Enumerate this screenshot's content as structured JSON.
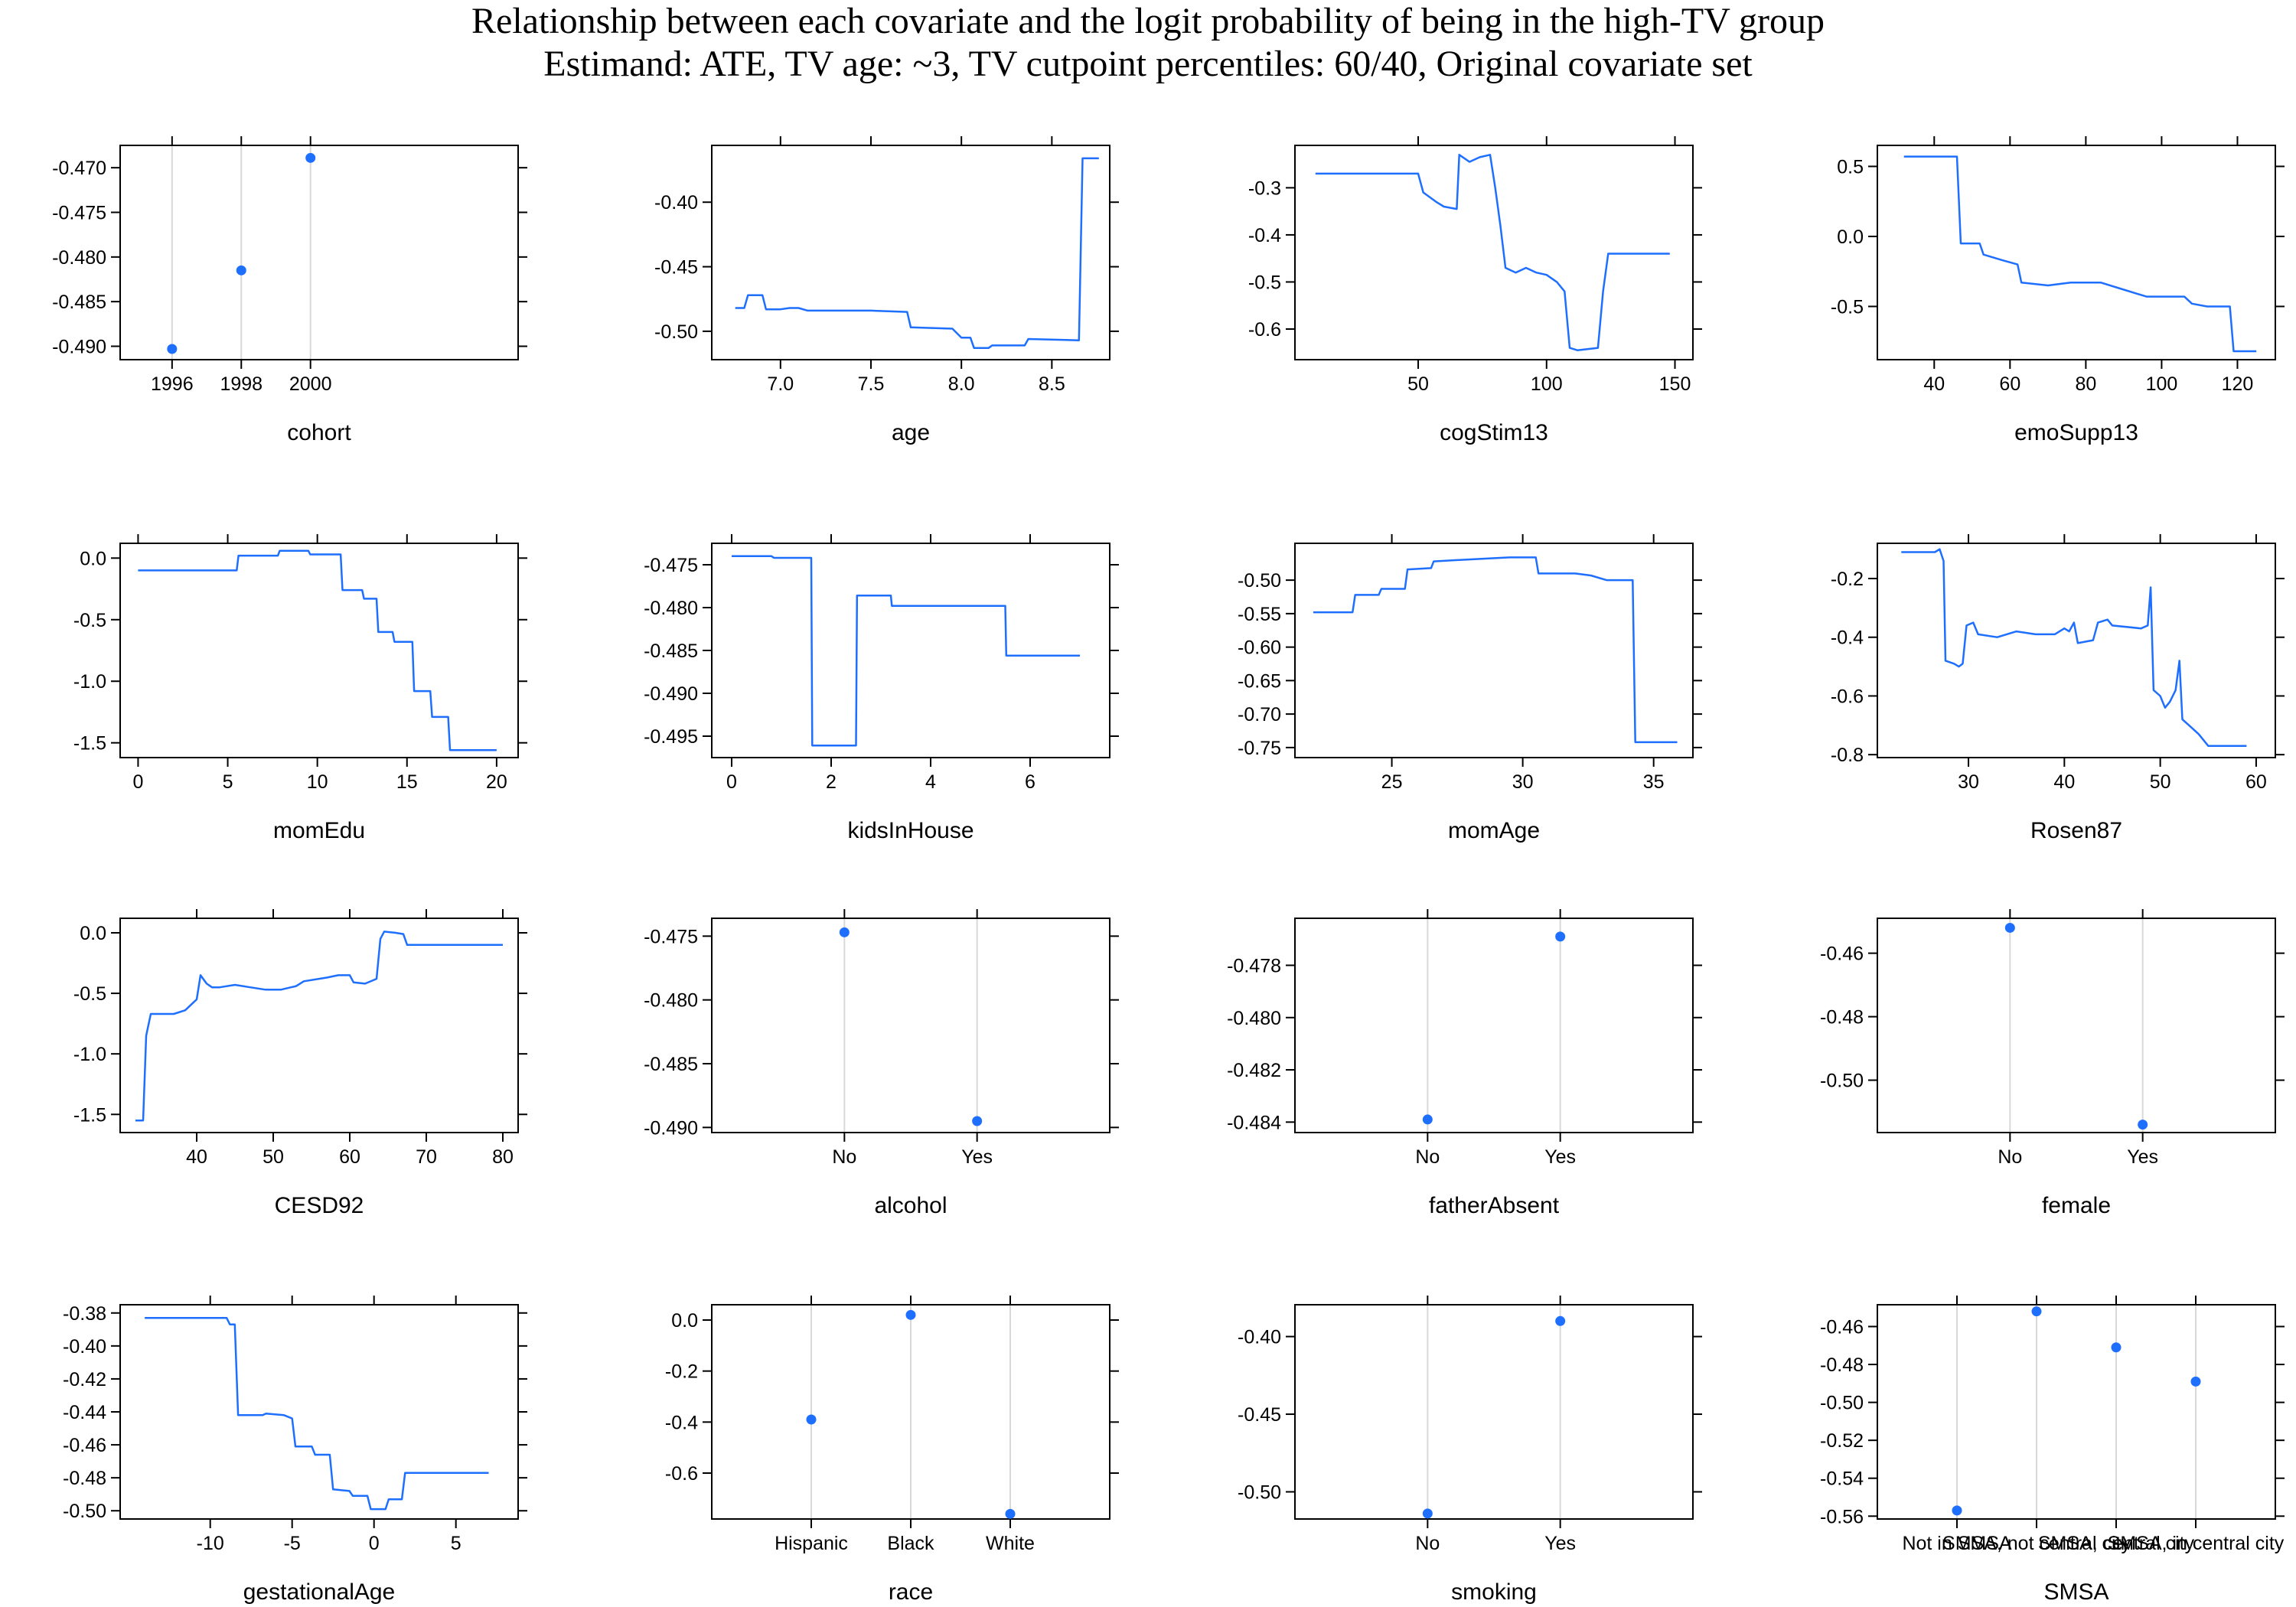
{
  "title": "Relationship between each covariate and the logit probability of being in the high-TV group",
  "subtitle": "Estimand: ATE, TV age: ~3, TV cutpoint percentiles: 60/40, Original covariate set",
  "colors": {
    "series": "#1f6fff",
    "axis": "#000000",
    "guide": "#d8d8d8"
  },
  "chart_data": [
    {
      "type": "scatter",
      "xlabel": "cohort",
      "categorical": false,
      "xlim": [
        1994.5,
        2006
      ],
      "xticks": [
        1996,
        1998,
        2000
      ],
      "xtick_labels": [
        "1996",
        "1998",
        "2000"
      ],
      "ylim": [
        -0.4915,
        -0.4675
      ],
      "yticks": [
        -0.49,
        -0.485,
        -0.48,
        -0.475,
        -0.47
      ],
      "ytick_labels": [
        "-0.490",
        "-0.485",
        "-0.480",
        "-0.475",
        "-0.470"
      ],
      "points": [
        [
          1996,
          -0.4903
        ],
        [
          1998,
          -0.4815
        ],
        [
          2000,
          -0.4689
        ]
      ]
    },
    {
      "type": "line",
      "xlabel": "age",
      "xlim": [
        6.62,
        8.82
      ],
      "xticks": [
        7.0,
        7.5,
        8.0,
        8.5
      ],
      "xtick_labels": [
        "7.0",
        "7.5",
        "8.0",
        "8.5"
      ],
      "ylim": [
        -0.522,
        -0.356
      ],
      "yticks": [
        -0.5,
        -0.45,
        -0.4
      ],
      "ytick_labels": [
        "-0.50",
        "-0.45",
        "-0.40"
      ],
      "points": [
        [
          6.75,
          -0.482
        ],
        [
          6.8,
          -0.482
        ],
        [
          6.82,
          -0.472
        ],
        [
          6.9,
          -0.472
        ],
        [
          6.92,
          -0.483
        ],
        [
          7.0,
          -0.483
        ],
        [
          7.05,
          -0.482
        ],
        [
          7.1,
          -0.482
        ],
        [
          7.15,
          -0.484
        ],
        [
          7.5,
          -0.484
        ],
        [
          7.7,
          -0.485
        ],
        [
          7.72,
          -0.497
        ],
        [
          7.95,
          -0.498
        ],
        [
          8.0,
          -0.505
        ],
        [
          8.05,
          -0.505
        ],
        [
          8.07,
          -0.513
        ],
        [
          8.15,
          -0.513
        ],
        [
          8.17,
          -0.511
        ],
        [
          8.35,
          -0.511
        ],
        [
          8.37,
          -0.506
        ],
        [
          8.65,
          -0.507
        ],
        [
          8.67,
          -0.366
        ],
        [
          8.76,
          -0.366
        ]
      ]
    },
    {
      "type": "line",
      "xlabel": "cogStim13",
      "xlim": [
        2,
        157
      ],
      "xticks": [
        50,
        100,
        150
      ],
      "xtick_labels": [
        "50",
        "100",
        "150"
      ],
      "ylim": [
        -0.665,
        -0.21
      ],
      "yticks": [
        -0.6,
        -0.5,
        -0.4,
        -0.3
      ],
      "ytick_labels": [
        "-0.6",
        "-0.5",
        "-0.4",
        "-0.3"
      ],
      "points": [
        [
          10,
          -0.27
        ],
        [
          50,
          -0.27
        ],
        [
          52,
          -0.31
        ],
        [
          57,
          -0.33
        ],
        [
          60,
          -0.34
        ],
        [
          65,
          -0.345
        ],
        [
          66,
          -0.23
        ],
        [
          70,
          -0.245
        ],
        [
          74,
          -0.235
        ],
        [
          78,
          -0.23
        ],
        [
          80,
          -0.3
        ],
        [
          82,
          -0.38
        ],
        [
          84,
          -0.47
        ],
        [
          88,
          -0.48
        ],
        [
          92,
          -0.47
        ],
        [
          96,
          -0.48
        ],
        [
          100,
          -0.485
        ],
        [
          104,
          -0.5
        ],
        [
          107,
          -0.52
        ],
        [
          109,
          -0.64
        ],
        [
          112,
          -0.645
        ],
        [
          120,
          -0.64
        ],
        [
          122,
          -0.52
        ],
        [
          124,
          -0.44
        ],
        [
          148,
          -0.44
        ]
      ]
    },
    {
      "type": "line",
      "xlabel": "emoSupp13",
      "xlim": [
        25,
        130
      ],
      "xticks": [
        40,
        60,
        80,
        100,
        120
      ],
      "xtick_labels": [
        "40",
        "60",
        "80",
        "100",
        "120"
      ],
      "ylim": [
        -0.88,
        0.65
      ],
      "yticks": [
        -0.5,
        0.0,
        0.5
      ],
      "ytick_labels": [
        "-0.5",
        "0.0",
        "0.5"
      ],
      "points": [
        [
          32,
          0.57
        ],
        [
          46,
          0.57
        ],
        [
          47,
          -0.05
        ],
        [
          52,
          -0.05
        ],
        [
          53,
          -0.13
        ],
        [
          58,
          -0.17
        ],
        [
          62,
          -0.2
        ],
        [
          63,
          -0.33
        ],
        [
          70,
          -0.35
        ],
        [
          76,
          -0.33
        ],
        [
          84,
          -0.33
        ],
        [
          90,
          -0.38
        ],
        [
          96,
          -0.43
        ],
        [
          106,
          -0.43
        ],
        [
          108,
          -0.48
        ],
        [
          112,
          -0.5
        ],
        [
          118,
          -0.5
        ],
        [
          119,
          -0.82
        ],
        [
          125,
          -0.82
        ]
      ]
    },
    {
      "type": "line",
      "xlabel": "momEdu",
      "xlim": [
        -1,
        21.2
      ],
      "xticks": [
        0,
        5,
        10,
        15,
        20
      ],
      "xtick_labels": [
        "0",
        "5",
        "10",
        "15",
        "20"
      ],
      "ylim": [
        -1.62,
        0.12
      ],
      "yticks": [
        -1.5,
        -1.0,
        -0.5,
        0.0
      ],
      "ytick_labels": [
        "-1.5",
        "-1.0",
        "-0.5",
        "0.0"
      ],
      "points": [
        [
          0,
          -0.1
        ],
        [
          5.5,
          -0.1
        ],
        [
          5.6,
          0.02
        ],
        [
          7.8,
          0.02
        ],
        [
          7.9,
          0.06
        ],
        [
          9.5,
          0.06
        ],
        [
          9.6,
          0.03
        ],
        [
          11.3,
          0.03
        ],
        [
          11.4,
          -0.26
        ],
        [
          12.5,
          -0.26
        ],
        [
          12.6,
          -0.33
        ],
        [
          13.3,
          -0.33
        ],
        [
          13.4,
          -0.6
        ],
        [
          14.2,
          -0.6
        ],
        [
          14.3,
          -0.68
        ],
        [
          15.3,
          -0.68
        ],
        [
          15.4,
          -1.08
        ],
        [
          16.3,
          -1.08
        ],
        [
          16.4,
          -1.29
        ],
        [
          17.3,
          -1.29
        ],
        [
          17.4,
          -1.56
        ],
        [
          20,
          -1.56
        ]
      ]
    },
    {
      "type": "line",
      "xlabel": "kidsInHouse",
      "xlim": [
        -0.4,
        7.6
      ],
      "xticks": [
        0,
        2,
        4,
        6
      ],
      "xtick_labels": [
        "0",
        "2",
        "4",
        "6"
      ],
      "ylim": [
        -0.4975,
        -0.4725
      ],
      "yticks": [
        -0.495,
        -0.49,
        -0.485,
        -0.48,
        -0.475
      ],
      "ytick_labels": [
        "-0.495",
        "-0.490",
        "-0.485",
        "-0.480",
        "-0.475"
      ],
      "points": [
        [
          0,
          -0.474
        ],
        [
          0.8,
          -0.474
        ],
        [
          0.85,
          -0.4742
        ],
        [
          1.6,
          -0.4742
        ],
        [
          1.62,
          -0.4961
        ],
        [
          2.5,
          -0.4961
        ],
        [
          2.52,
          -0.4786
        ],
        [
          3.2,
          -0.4786
        ],
        [
          3.22,
          -0.4798
        ],
        [
          5.5,
          -0.4798
        ],
        [
          5.52,
          -0.4856
        ],
        [
          7,
          -0.4856
        ]
      ]
    },
    {
      "type": "line",
      "xlabel": "momAge",
      "xlim": [
        21.3,
        36.5
      ],
      "xticks": [
        25,
        30,
        35
      ],
      "xtick_labels": [
        "25",
        "30",
        "35"
      ],
      "ylim": [
        -0.765,
        -0.445
      ],
      "yticks": [
        -0.75,
        -0.7,
        -0.65,
        -0.6,
        -0.55,
        -0.5
      ],
      "ytick_labels": [
        "-0.75",
        "-0.70",
        "-0.65",
        "-0.60",
        "-0.55",
        "-0.50"
      ],
      "points": [
        [
          22,
          -0.548
        ],
        [
          23.5,
          -0.548
        ],
        [
          23.6,
          -0.522
        ],
        [
          24.5,
          -0.522
        ],
        [
          24.6,
          -0.513
        ],
        [
          25.5,
          -0.513
        ],
        [
          25.6,
          -0.484
        ],
        [
          26.5,
          -0.482
        ],
        [
          26.6,
          -0.472
        ],
        [
          27.5,
          -0.47
        ],
        [
          28.5,
          -0.468
        ],
        [
          29.5,
          -0.466
        ],
        [
          30.5,
          -0.466
        ],
        [
          30.6,
          -0.49
        ],
        [
          32,
          -0.49
        ],
        [
          32.6,
          -0.493
        ],
        [
          33.2,
          -0.5
        ],
        [
          34.2,
          -0.5
        ],
        [
          34.3,
          -0.742
        ],
        [
          35.9,
          -0.742
        ]
      ]
    },
    {
      "type": "line",
      "xlabel": "Rosen87",
      "xlim": [
        20.5,
        62
      ],
      "xticks": [
        30,
        40,
        50,
        60
      ],
      "xtick_labels": [
        "30",
        "40",
        "50",
        "60"
      ],
      "ylim": [
        -0.81,
        -0.08
      ],
      "yticks": [
        -0.8,
        -0.6,
        -0.4,
        -0.2
      ],
      "ytick_labels": [
        "-0.8",
        "-0.6",
        "-0.4",
        "-0.2"
      ],
      "points": [
        [
          23,
          -0.11
        ],
        [
          26.5,
          -0.11
        ],
        [
          27,
          -0.1
        ],
        [
          27.4,
          -0.14
        ],
        [
          27.6,
          -0.48
        ],
        [
          28.5,
          -0.49
        ],
        [
          29,
          -0.5
        ],
        [
          29.4,
          -0.49
        ],
        [
          29.8,
          -0.36
        ],
        [
          30.5,
          -0.35
        ],
        [
          31,
          -0.39
        ],
        [
          33,
          -0.4
        ],
        [
          35,
          -0.38
        ],
        [
          37,
          -0.39
        ],
        [
          39,
          -0.39
        ],
        [
          40,
          -0.37
        ],
        [
          40.5,
          -0.38
        ],
        [
          41,
          -0.35
        ],
        [
          41.4,
          -0.42
        ],
        [
          43,
          -0.41
        ],
        [
          43.5,
          -0.35
        ],
        [
          44.5,
          -0.34
        ],
        [
          45,
          -0.36
        ],
        [
          48,
          -0.37
        ],
        [
          48.7,
          -0.36
        ],
        [
          49,
          -0.23
        ],
        [
          49.3,
          -0.58
        ],
        [
          50,
          -0.6
        ],
        [
          50.5,
          -0.64
        ],
        [
          51,
          -0.62
        ],
        [
          51.6,
          -0.58
        ],
        [
          52,
          -0.48
        ],
        [
          52.3,
          -0.68
        ],
        [
          53,
          -0.7
        ],
        [
          54,
          -0.73
        ],
        [
          55,
          -0.77
        ],
        [
          59,
          -0.77
        ]
      ]
    },
    {
      "type": "line",
      "xlabel": "CESD92",
      "xlim": [
        30,
        82
      ],
      "xticks": [
        40,
        50,
        60,
        70,
        80
      ],
      "xtick_labels": [
        "40",
        "50",
        "60",
        "70",
        "80"
      ],
      "ylim": [
        -1.65,
        0.12
      ],
      "yticks": [
        -1.5,
        -1.0,
        -0.5,
        0.0
      ],
      "ytick_labels": [
        "-1.5",
        "-1.0",
        "-0.5",
        "0.0"
      ],
      "points": [
        [
          32,
          -1.55
        ],
        [
          33,
          -1.55
        ],
        [
          33.4,
          -0.85
        ],
        [
          34,
          -0.67
        ],
        [
          37,
          -0.67
        ],
        [
          38.5,
          -0.64
        ],
        [
          40,
          -0.55
        ],
        [
          40.5,
          -0.35
        ],
        [
          41.3,
          -0.42
        ],
        [
          42,
          -0.45
        ],
        [
          43,
          -0.45
        ],
        [
          45,
          -0.43
        ],
        [
          47,
          -0.45
        ],
        [
          49,
          -0.47
        ],
        [
          51,
          -0.47
        ],
        [
          53,
          -0.44
        ],
        [
          54,
          -0.4
        ],
        [
          57,
          -0.37
        ],
        [
          58.5,
          -0.35
        ],
        [
          60,
          -0.35
        ],
        [
          60.5,
          -0.41
        ],
        [
          62,
          -0.42
        ],
        [
          63.5,
          -0.38
        ],
        [
          64,
          -0.05
        ],
        [
          64.5,
          0.01
        ],
        [
          66,
          0.0
        ],
        [
          67,
          -0.01
        ],
        [
          67.5,
          -0.1
        ],
        [
          80,
          -0.1
        ]
      ]
    },
    {
      "type": "scatter",
      "xlabel": "alcohol",
      "categorical": true,
      "categories": [
        "No",
        "Yes"
      ],
      "ylim": [
        -0.4904,
        -0.4736
      ],
      "yticks": [
        -0.49,
        -0.485,
        -0.48,
        -0.475
      ],
      "ytick_labels": [
        "-0.490",
        "-0.485",
        "-0.480",
        "-0.475"
      ],
      "values": [
        -0.4747,
        -0.4895
      ]
    },
    {
      "type": "scatter",
      "xlabel": "fatherAbsent",
      "categorical": true,
      "categories": [
        "No",
        "Yes"
      ],
      "ylim": [
        -0.4844,
        -0.4762
      ],
      "yticks": [
        -0.484,
        -0.482,
        -0.48,
        -0.478
      ],
      "ytick_labels": [
        "-0.484",
        "-0.482",
        "-0.480",
        "-0.478"
      ],
      "values": [
        -0.4839,
        -0.4769
      ]
    },
    {
      "type": "scatter",
      "xlabel": "female",
      "categorical": true,
      "categories": [
        "No",
        "Yes"
      ],
      "ylim": [
        -0.5165,
        -0.449
      ],
      "yticks": [
        -0.5,
        -0.48,
        -0.46
      ],
      "ytick_labels": [
        "-0.50",
        "-0.48",
        "-0.46"
      ],
      "values": [
        -0.452,
        -0.514
      ]
    },
    {
      "type": "line",
      "xlabel": "gestationalAge",
      "xlim": [
        -15.5,
        8.8
      ],
      "xticks": [
        -10,
        -5,
        0,
        5
      ],
      "xtick_labels": [
        "-10",
        "-5",
        "0",
        "5"
      ],
      "ylim": [
        -0.505,
        -0.375
      ],
      "yticks": [
        -0.5,
        -0.48,
        -0.46,
        -0.44,
        -0.42,
        -0.4,
        -0.38
      ],
      "ytick_labels": [
        "-0.50",
        "-0.48",
        "-0.46",
        "-0.44",
        "-0.42",
        "-0.40",
        "-0.38"
      ],
      "points": [
        [
          -14,
          -0.383
        ],
        [
          -9,
          -0.383
        ],
        [
          -8.8,
          -0.387
        ],
        [
          -8.5,
          -0.387
        ],
        [
          -8.3,
          -0.442
        ],
        [
          -6.8,
          -0.442
        ],
        [
          -6.6,
          -0.441
        ],
        [
          -5.5,
          -0.442
        ],
        [
          -5,
          -0.444
        ],
        [
          -4.8,
          -0.461
        ],
        [
          -3.8,
          -0.461
        ],
        [
          -3.6,
          -0.466
        ],
        [
          -2.7,
          -0.466
        ],
        [
          -2.5,
          -0.487
        ],
        [
          -1.5,
          -0.488
        ],
        [
          -1.3,
          -0.491
        ],
        [
          -0.4,
          -0.491
        ],
        [
          -0.2,
          -0.499
        ],
        [
          0.7,
          -0.499
        ],
        [
          0.9,
          -0.493
        ],
        [
          1.7,
          -0.493
        ],
        [
          1.9,
          -0.477
        ],
        [
          7,
          -0.477
        ]
      ]
    },
    {
      "type": "scatter",
      "xlabel": "race",
      "categorical": true,
      "categories": [
        "Hispanic",
        "Black",
        "White"
      ],
      "ylim": [
        -0.78,
        0.06
      ],
      "yticks": [
        -0.6,
        -0.4,
        -0.2,
        0.0
      ],
      "ytick_labels": [
        "-0.6",
        "-0.4",
        "-0.2",
        "0.0"
      ],
      "values": [
        -0.39,
        0.02,
        -0.76
      ]
    },
    {
      "type": "scatter",
      "xlabel": "smoking",
      "categorical": true,
      "categories": [
        "No",
        "Yes"
      ],
      "ylim": [
        -0.5175,
        -0.3795
      ],
      "yticks": [
        -0.5,
        -0.45,
        -0.4
      ],
      "ytick_labels": [
        "-0.50",
        "-0.45",
        "-0.40"
      ],
      "values": [
        -0.514,
        -0.39
      ]
    },
    {
      "type": "scatter",
      "xlabel": "SMSA",
      "categorical": true,
      "categories": [
        "Not in SMSA",
        "SMSA, not central city",
        "SMSA, central city",
        "SMSA, in central city"
      ],
      "ylim": [
        -0.5615,
        -0.4485
      ],
      "yticks": [
        -0.56,
        -0.54,
        -0.52,
        -0.5,
        -0.48,
        -0.46
      ],
      "ytick_labels": [
        "-0.56",
        "-0.54",
        "-0.52",
        "-0.50",
        "-0.48",
        "-0.46"
      ],
      "values": [
        -0.557,
        -0.452,
        -0.471,
        -0.489
      ]
    }
  ]
}
